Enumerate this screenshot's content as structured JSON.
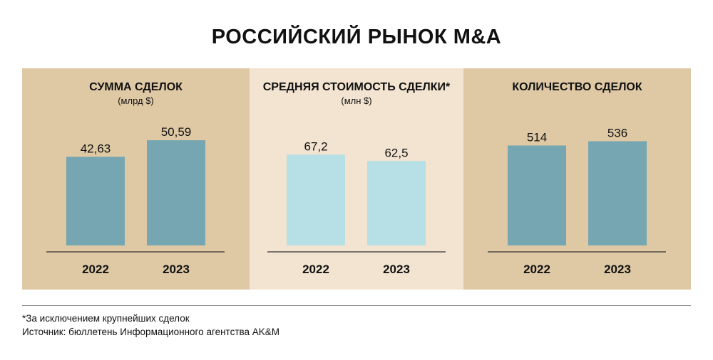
{
  "title": "РОССИЙСКИЙ РЫНОК M&A",
  "colors": {
    "panel_dark": "#dfc9a5",
    "panel_light": "#f2e4d0",
    "bar_dark": "#76a6b1",
    "bar_light": "#b6dfe6"
  },
  "panels": [
    {
      "title": "СУММА СДЕЛОК",
      "subtitle": "(млрд $)"
    },
    {
      "title": "СРЕДНЯЯ СТОИМОСТЬ СДЕЛКИ*",
      "subtitle": "(млн $)"
    },
    {
      "title": "КОЛИЧЕСТВО СДЕЛОК",
      "subtitle": ""
    }
  ],
  "chart_data": [
    {
      "type": "bar",
      "title": "СУММА СДЕЛОК",
      "ylabel": "(млрд $)",
      "categories": [
        "2022",
        "2023"
      ],
      "values": [
        42.63,
        50.59
      ],
      "value_labels": [
        "42,63",
        "50,59"
      ],
      "ylim": [
        0,
        65
      ]
    },
    {
      "type": "bar",
      "title": "СРЕДНЯЯ СТОИМОСТЬ СДЕЛКИ*",
      "ylabel": "(млн $)",
      "categories": [
        "2022",
        "2023"
      ],
      "values": [
        67.2,
        62.5
      ],
      "value_labels": [
        "67,2",
        "62,5"
      ],
      "ylim": [
        0,
        100
      ]
    },
    {
      "type": "bar",
      "title": "КОЛИЧЕСТВО СДЕЛОК",
      "ylabel": "",
      "categories": [
        "2022",
        "2023"
      ],
      "values": [
        514,
        536
      ],
      "value_labels": [
        "514",
        "536"
      ],
      "ylim": [
        0,
        695
      ]
    }
  ],
  "footnotes": {
    "note": "*За исключением крупнейших сделок",
    "source": "Источник: бюллетень Информационного агентства AK&M"
  }
}
